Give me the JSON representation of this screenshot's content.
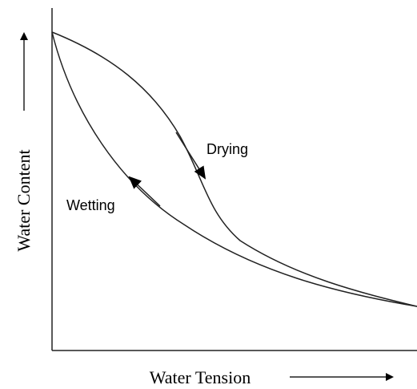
{
  "y_axis_label": "Water Content",
  "x_axis_label": "Water Tension",
  "curves": [
    {
      "label": "Drying"
    },
    {
      "label": "Wetting"
    }
  ]
}
